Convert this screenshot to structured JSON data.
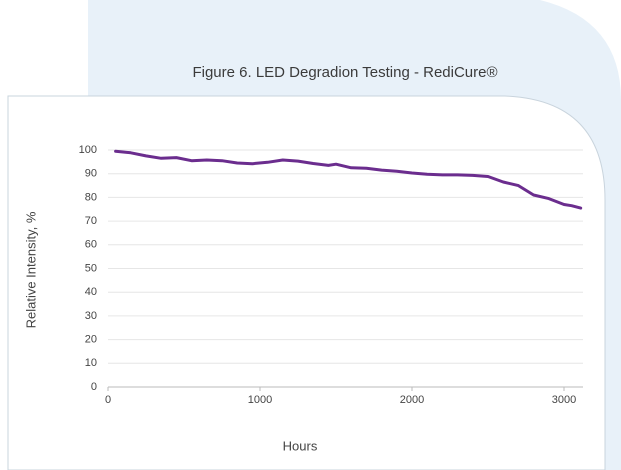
{
  "chart_data": {
    "type": "line",
    "title": "Figure 6. LED Degradion Testing - RediCure®",
    "xlabel": "Hours",
    "ylabel": "Relative Intensity, %",
    "x": [
      50,
      150,
      250,
      350,
      450,
      550,
      650,
      750,
      850,
      950,
      1050,
      1150,
      1250,
      1350,
      1450,
      1500,
      1600,
      1700,
      1800,
      1900,
      2000,
      2100,
      2200,
      2300,
      2400,
      2500,
      2600,
      2700,
      2800,
      2900,
      3000,
      3050,
      3110
    ],
    "series": [
      {
        "name": "RediCure",
        "color": "#6b2d8e",
        "values": [
          99.5,
          98.8,
          97.5,
          96.5,
          96.8,
          95.5,
          95.8,
          95.5,
          94.5,
          94.2,
          94.8,
          95.8,
          95.3,
          94.3,
          93.5,
          94,
          92.5,
          92.3,
          91.5,
          91,
          90.3,
          89.8,
          89.5,
          89.5,
          89.3,
          88.8,
          86.5,
          85,
          81,
          79.5,
          77,
          76.5,
          75.5
        ]
      }
    ],
    "xlim": [
      0,
      3125
    ],
    "xticks": [
      0,
      1000,
      2000,
      3000
    ],
    "ylim": [
      0,
      100
    ],
    "yticks": [
      0,
      10,
      20,
      30,
      40,
      50,
      60,
      70,
      80,
      90,
      100
    ],
    "grid": true
  }
}
